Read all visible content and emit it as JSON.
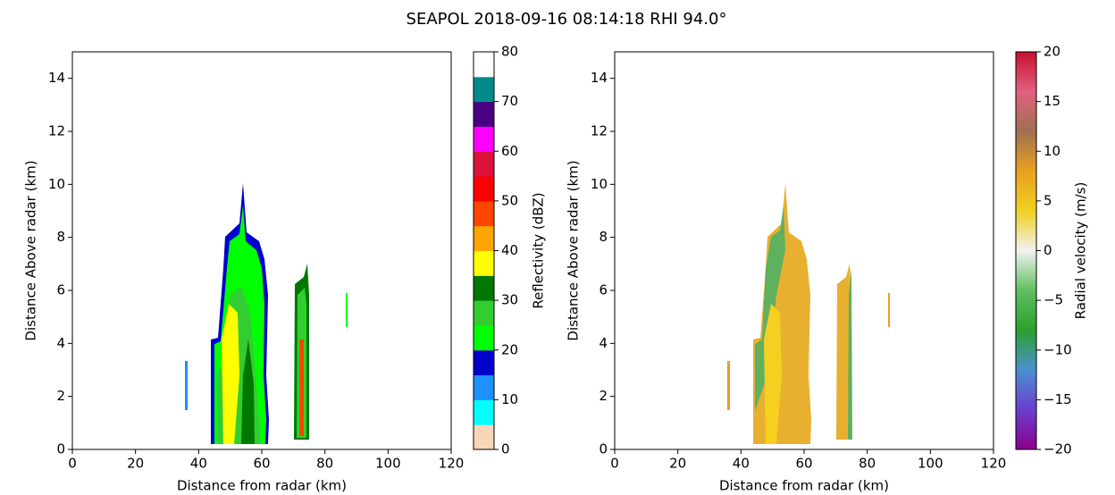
{
  "title": "SEAPOL 2018-09-16 08:14:18 RHI 94.0°",
  "chart_data": [
    {
      "type": "heatmap",
      "xlabel": "Distance from radar (km)",
      "ylabel": "Distance Above radar  (km)",
      "xlim": [
        0,
        120
      ],
      "xticks": [
        0,
        20,
        40,
        60,
        80,
        100,
        120
      ],
      "ylim": [
        0,
        15
      ],
      "yticks": [
        0,
        2,
        4,
        6,
        8,
        10,
        12,
        14
      ],
      "colorbar": {
        "label": "Reflectivity (dBZ)",
        "lim": [
          0,
          80
        ],
        "ticks": [
          0,
          10,
          20,
          30,
          40,
          50,
          60,
          70,
          80
        ],
        "discrete": true,
        "colors": [
          "#f8d6b8",
          "#00ffff",
          "#1e90ff",
          "#0000cd",
          "#00ff00",
          "#32cd32",
          "#007800",
          "#ffff00",
          "#ffa500",
          "#ff4500",
          "#ff0000",
          "#dc143c",
          "#ff00ff",
          "#4b0082",
          "#008b8b",
          "#ffffff"
        ]
      }
    },
    {
      "type": "heatmap",
      "xlabel": "Distance from radar (km)",
      "ylabel": "Distance Above radar  (km)",
      "xlim": [
        0,
        120
      ],
      "xticks": [
        0,
        20,
        40,
        60,
        80,
        100,
        120
      ],
      "ylim": [
        0,
        15
      ],
      "yticks": [
        0,
        2,
        4,
        6,
        8,
        10,
        12,
        14
      ],
      "colorbar": {
        "label": "Radial velocity (m/s)",
        "lim": [
          -20,
          20
        ],
        "discrete": false,
        "ticks": [
          {
            "value": -20,
            "label": "−20"
          },
          {
            "value": -15,
            "label": "−15"
          },
          {
            "value": -10,
            "label": "−10"
          },
          {
            "value": -5,
            "label": "−5"
          },
          0,
          5,
          10,
          15,
          20
        ],
        "colors": [
          "#8b008b",
          "#6a3fcf",
          "#4a90d0",
          "#2ca02c",
          "#5fbf5f",
          "#f2f2f2",
          "#f0d020",
          "#e8a020",
          "#a07050",
          "#e06080",
          "#c8102e"
        ]
      }
    }
  ]
}
